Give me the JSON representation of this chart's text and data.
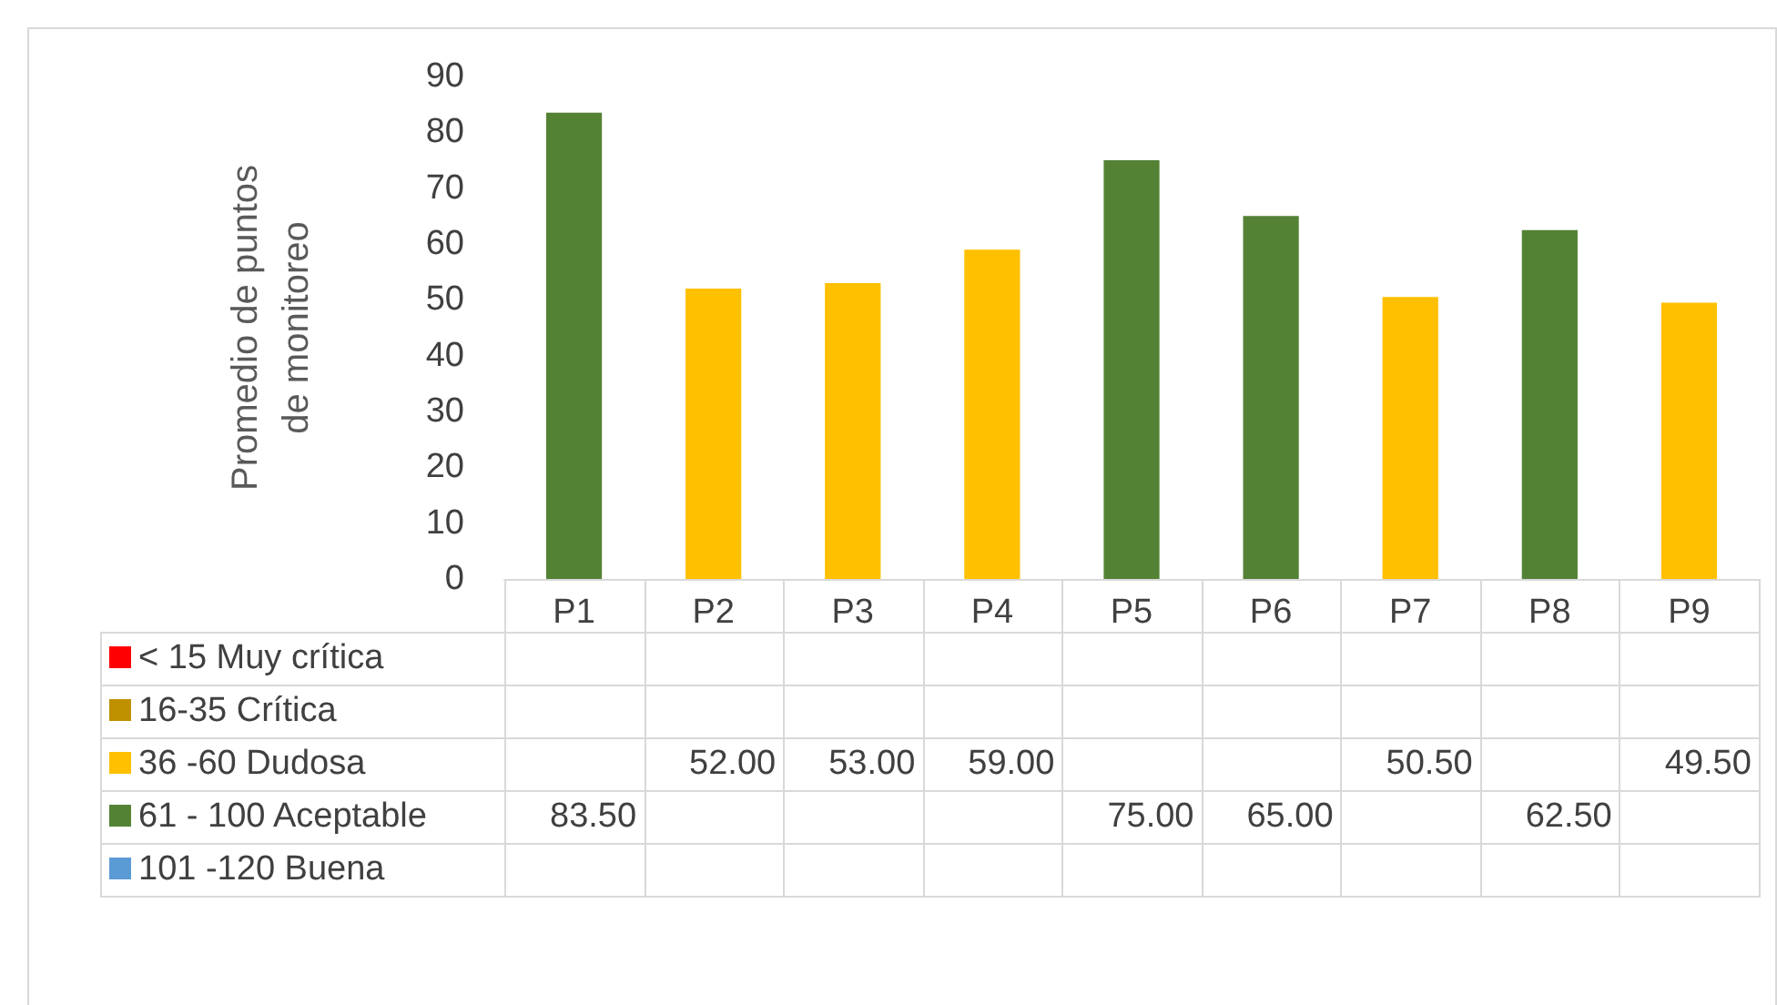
{
  "chart_data": {
    "type": "bar",
    "ylabel": "Promedio de puntos\nde monitoreo",
    "categories": [
      "P1",
      "P2",
      "P3",
      "P4",
      "P5",
      "P6",
      "P7",
      "P8",
      "P9"
    ],
    "stacked": true,
    "ylim": [
      0,
      90
    ],
    "yticks": [
      0,
      10,
      20,
      30,
      40,
      50,
      60,
      70,
      80,
      90
    ],
    "grid": false,
    "legend": "bottom",
    "series": [
      {
        "name": "< 15 Muy crítica",
        "color": "#ff0000",
        "values": [
          null,
          null,
          null,
          null,
          null,
          null,
          null,
          null,
          null
        ],
        "value_labels": [
          null,
          null,
          null,
          null,
          null,
          null,
          null,
          null,
          null
        ]
      },
      {
        "name": "16-35 Crítica",
        "color": "#bf9000",
        "values": [
          null,
          null,
          null,
          null,
          null,
          null,
          null,
          null,
          null
        ],
        "value_labels": [
          null,
          null,
          null,
          null,
          null,
          null,
          null,
          null,
          null
        ]
      },
      {
        "name": "36 -60 Dudosa",
        "color": "#ffc000",
        "values": [
          null,
          52,
          53,
          59,
          null,
          null,
          50.5,
          null,
          49.5
        ],
        "value_labels": [
          null,
          "52.00",
          "53.00",
          "59.00",
          null,
          null,
          "50.50",
          null,
          "49.50"
        ]
      },
      {
        "name": "61 - 100 Aceptable",
        "color": "#548235",
        "values": [
          83.5,
          null,
          null,
          null,
          75,
          65,
          null,
          62.5,
          null
        ],
        "value_labels": [
          "83.50",
          null,
          null,
          null,
          "75.00",
          "65.00",
          null,
          "62.50",
          null
        ]
      },
      {
        "name": "101 -120 Buena",
        "color": "#5b9bd5",
        "values": [
          null,
          null,
          null,
          null,
          null,
          null,
          null,
          null,
          null
        ],
        "value_labels": [
          null,
          null,
          null,
          null,
          null,
          null,
          null,
          null,
          null
        ]
      }
    ]
  }
}
